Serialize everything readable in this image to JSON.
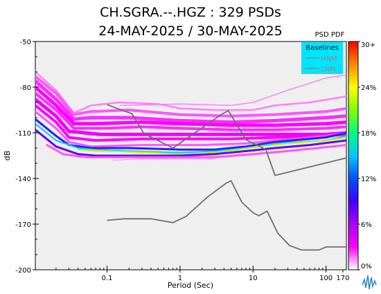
{
  "chart_data": {
    "type": "heatmap",
    "title_line1": "CH.SGRA.--.HGZ : 329 PSDs",
    "title_line2": "24-MAY-2025 / 30-MAY-2025",
    "xlabel": "Period (Sec)",
    "ylabel": "dB",
    "x_scale": "log",
    "xlim": [
      0.0104,
      190
    ],
    "ylim": [
      -200,
      -50
    ],
    "x_ticks": [
      {
        "value": 0.1,
        "label": "0.1"
      },
      {
        "value": 1,
        "label": "1"
      },
      {
        "value": 10,
        "label": "10"
      },
      {
        "value": 100,
        "label": "100"
      },
      {
        "value": 170,
        "label": "170"
      }
    ],
    "y_ticks": [
      {
        "value": -50,
        "label": "-50"
      },
      {
        "value": -80,
        "label": "-80"
      },
      {
        "value": -110,
        "label": "-110"
      },
      {
        "value": -140,
        "label": "-140"
      },
      {
        "value": -170,
        "label": "-170"
      },
      {
        "value": -200,
        "label": "-200"
      }
    ],
    "colorbar": {
      "title": "PSD PDF",
      "ticks": [
        {
          "value": 30,
          "label": "30+"
        },
        {
          "value": 24,
          "label": "24%"
        },
        {
          "value": 18,
          "label": "18%"
        },
        {
          "value": 12,
          "label": "12%"
        },
        {
          "value": 6,
          "label": "6%"
        },
        {
          "value": 0,
          "label": "0%"
        }
      ],
      "range": [
        0,
        30
      ],
      "colors": [
        "#ffffff",
        "#ff00ff",
        "#aa00ff",
        "#4000ff",
        "#0050ff",
        "#00c8ff",
        "#00ff80",
        "#80ff00",
        "#ffff00",
        "#ff8800",
        "#ff0000"
      ]
    },
    "legend": {
      "title": "Baselines",
      "placement": "top-right",
      "background": "#00e5ff",
      "items": [
        {
          "name": "HNM",
          "color": "#7a7a7a"
        },
        {
          "name": "LNM",
          "color": "#7a7a7a"
        }
      ]
    },
    "baselines": [
      {
        "name": "HNM",
        "points": [
          [
            0.1,
            -91.5
          ],
          [
            0.22,
            -97.5
          ],
          [
            0.32,
            -110.5
          ],
          [
            0.8,
            -120
          ],
          [
            3.8,
            -97.5
          ],
          [
            4.6,
            -95.5
          ],
          [
            8,
            -114.5
          ],
          [
            15,
            -121
          ],
          [
            20,
            -138
          ],
          [
            190,
            -126.5
          ]
        ]
      },
      {
        "name": "LNM",
        "points": [
          [
            0.1,
            -167.5
          ],
          [
            0.17,
            -166.5
          ],
          [
            0.4,
            -166.5
          ],
          [
            0.8,
            -169
          ],
          [
            1.2,
            -165
          ],
          [
            2.4,
            -152
          ],
          [
            4.3,
            -143
          ],
          [
            5,
            -141.5
          ],
          [
            7,
            -155.5
          ],
          [
            10,
            -162.5
          ],
          [
            12,
            -164.5
          ],
          [
            15.6,
            -161.5
          ],
          [
            21.9,
            -176
          ],
          [
            31.6,
            -184
          ],
          [
            46,
            -187
          ],
          [
            80,
            -187
          ],
          [
            100,
            -185
          ],
          [
            190,
            -185
          ]
        ]
      }
    ],
    "pdf_bands": [
      {
        "pct": 1.5,
        "points": [
          [
            0.0104,
            -70
          ],
          [
            0.02,
            -82
          ],
          [
            0.035,
            -97
          ],
          [
            0.06,
            -92
          ],
          [
            0.15,
            -90
          ],
          [
            0.5,
            -91
          ],
          [
            1,
            -94
          ],
          [
            3,
            -95
          ],
          [
            10,
            -95
          ],
          [
            20,
            -92
          ],
          [
            60,
            -90
          ],
          [
            190,
            -86
          ]
        ],
        "width": 2.5
      },
      {
        "pct": 1.5,
        "points": [
          [
            0.15,
            -92
          ],
          [
            1,
            -91
          ],
          [
            5,
            -92
          ],
          [
            10,
            -90
          ],
          [
            30,
            -82
          ],
          [
            100,
            -74
          ],
          [
            190,
            -72
          ]
        ],
        "width": 1.5
      },
      {
        "pct": 2,
        "points": [
          [
            0.0104,
            -73
          ],
          [
            0.02,
            -84
          ],
          [
            0.035,
            -98
          ],
          [
            0.06,
            -96
          ],
          [
            0.2,
            -95
          ],
          [
            1,
            -98
          ],
          [
            5,
            -99
          ],
          [
            20,
            -98
          ],
          [
            100,
            -96
          ],
          [
            190,
            -94
          ]
        ],
        "width": 4
      },
      {
        "pct": 2.5,
        "points": [
          [
            0.0104,
            -76
          ],
          [
            0.02,
            -88
          ],
          [
            0.035,
            -101
          ],
          [
            0.06,
            -100
          ],
          [
            0.2,
            -100
          ],
          [
            1,
            -102
          ],
          [
            5,
            -103
          ],
          [
            20,
            -102
          ],
          [
            100,
            -100
          ],
          [
            190,
            -99
          ]
        ],
        "width": 5
      },
      {
        "pct": 3,
        "points": [
          [
            0.0104,
            -80
          ],
          [
            0.02,
            -92
          ],
          [
            0.035,
            -104
          ],
          [
            0.07,
            -104
          ],
          [
            0.3,
            -103
          ],
          [
            1,
            -104
          ],
          [
            5,
            -105
          ],
          [
            20,
            -105
          ],
          [
            100,
            -104
          ],
          [
            190,
            -103
          ]
        ],
        "width": 5
      },
      {
        "pct": 2.5,
        "points": [
          [
            0.0104,
            -84
          ],
          [
            0.02,
            -95
          ],
          [
            0.035,
            -107
          ],
          [
            0.1,
            -107
          ],
          [
            0.3,
            -106
          ],
          [
            1,
            -107
          ],
          [
            5,
            -108
          ],
          [
            20,
            -108
          ],
          [
            100,
            -107
          ],
          [
            190,
            -106
          ]
        ],
        "width": 4
      },
      {
        "pct": 3.5,
        "points": [
          [
            0.0104,
            -88
          ],
          [
            0.02,
            -99
          ],
          [
            0.03,
            -109
          ],
          [
            0.08,
            -111
          ],
          [
            0.3,
            -111
          ],
          [
            1,
            -111
          ],
          [
            5,
            -111
          ],
          [
            20,
            -111
          ],
          [
            100,
            -111
          ],
          [
            190,
            -110
          ]
        ],
        "width": 5
      },
      {
        "pct": 3,
        "points": [
          [
            0.0104,
            -92
          ],
          [
            0.02,
            -103
          ],
          [
            0.03,
            -113
          ],
          [
            0.07,
            -115
          ],
          [
            0.3,
            -114
          ],
          [
            1,
            -114
          ],
          [
            5,
            -114
          ],
          [
            20,
            -113
          ],
          [
            100,
            -112
          ],
          [
            190,
            -111
          ]
        ],
        "width": 4
      },
      {
        "pct": 2,
        "points": [
          [
            0.0104,
            -96
          ],
          [
            0.02,
            -107
          ],
          [
            0.03,
            -116
          ],
          [
            0.06,
            -119
          ],
          [
            0.3,
            -118
          ],
          [
            2,
            -118
          ],
          [
            8,
            -117
          ],
          [
            20,
            -115
          ],
          [
            100,
            -112
          ],
          [
            190,
            -110
          ]
        ],
        "width": 3
      },
      {
        "pct": 10,
        "points": [
          [
            0.0104,
            -101
          ],
          [
            0.02,
            -112
          ],
          [
            0.03,
            -118
          ],
          [
            0.06,
            -120
          ],
          [
            0.2,
            -120
          ],
          [
            1,
            -121
          ],
          [
            3,
            -121
          ],
          [
            8,
            -119
          ],
          [
            20,
            -116
          ],
          [
            100,
            -113
          ],
          [
            190,
            -110
          ]
        ],
        "width": 3
      },
      {
        "pct": 15,
        "points": [
          [
            0.0104,
            -104
          ],
          [
            0.02,
            -115
          ],
          [
            0.04,
            -120
          ],
          [
            0.07,
            -121
          ],
          [
            0.2,
            -122
          ],
          [
            1,
            -123
          ],
          [
            3,
            -122
          ],
          [
            8,
            -120
          ],
          [
            20,
            -117
          ],
          [
            100,
            -115
          ],
          [
            190,
            -112
          ]
        ],
        "width": 2
      },
      {
        "pct": 22,
        "points": [
          [
            0.04,
            -121
          ],
          [
            0.1,
            -122
          ],
          [
            0.4,
            -123
          ],
          [
            1,
            -124
          ],
          [
            3,
            -123
          ],
          [
            6,
            -121
          ],
          [
            12,
            -119
          ],
          [
            30,
            -117
          ],
          [
            100,
            -115
          ],
          [
            190,
            -113
          ]
        ],
        "width": 2
      },
      {
        "pct": 8,
        "points": [
          [
            0.0104,
            -108
          ],
          [
            0.02,
            -119
          ],
          [
            0.04,
            -124
          ],
          [
            0.07,
            -125
          ],
          [
            0.2,
            -125
          ],
          [
            1,
            -125
          ],
          [
            3,
            -124
          ],
          [
            8,
            -122
          ],
          [
            20,
            -120
          ],
          [
            60,
            -118
          ],
          [
            190,
            -115
          ]
        ],
        "width": 3
      },
      {
        "pct": 2,
        "points": [
          [
            0.015,
            -118
          ],
          [
            0.025,
            -124
          ],
          [
            0.05,
            -126
          ],
          [
            0.2,
            -126
          ],
          [
            1,
            -126
          ],
          [
            3,
            -126
          ],
          [
            10,
            -124
          ],
          [
            30,
            -122
          ],
          [
            190,
            -118
          ]
        ],
        "width": 3
      },
      {
        "pct": 1.5,
        "points": [
          [
            0.12,
            -128
          ],
          [
            0.3,
            -127
          ],
          [
            1,
            -127
          ],
          [
            3,
            -127
          ]
        ],
        "width": 1
      }
    ]
  }
}
